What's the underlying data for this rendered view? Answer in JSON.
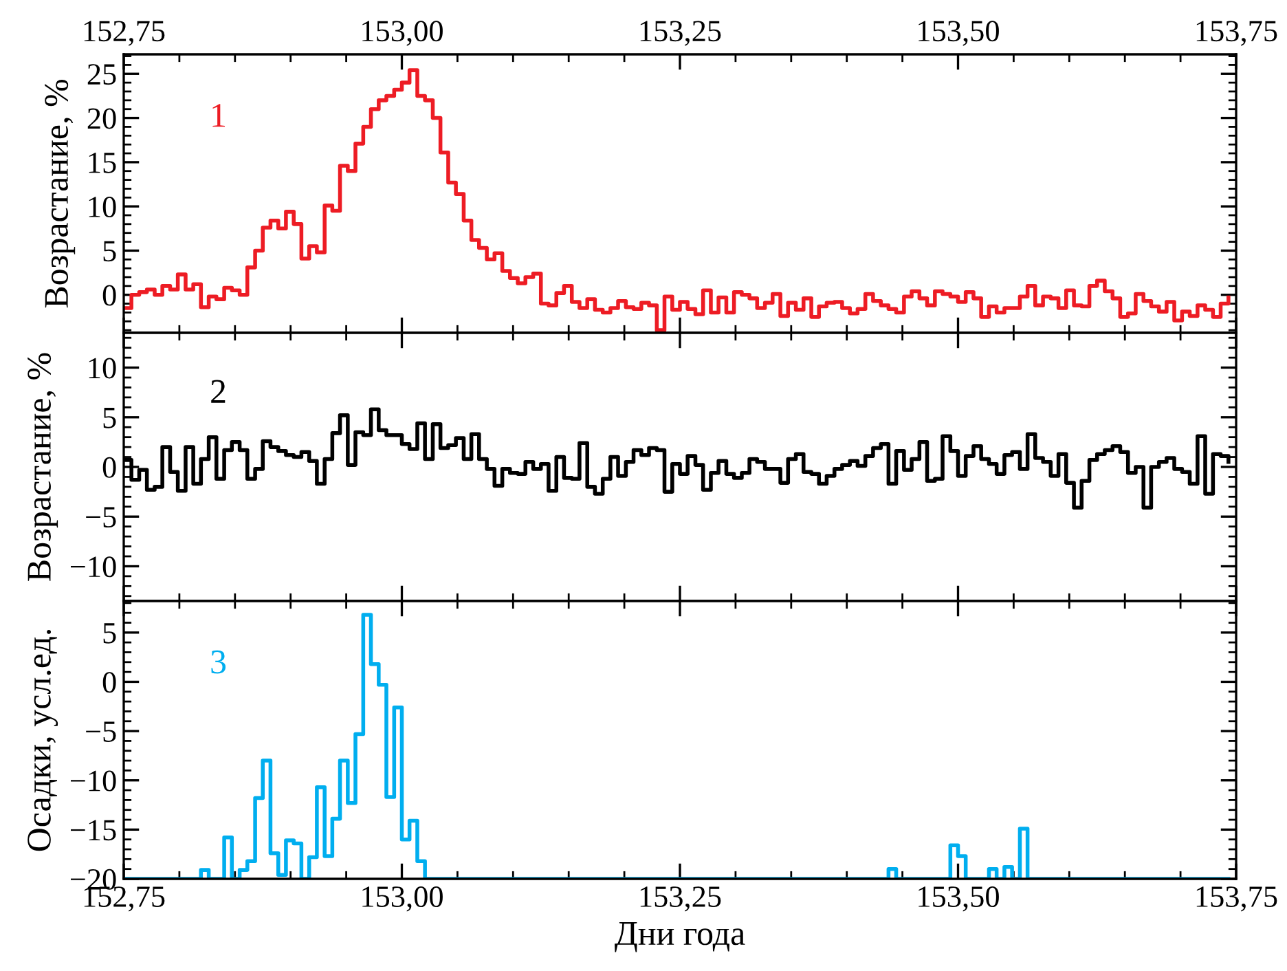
{
  "chart_data": [
    {
      "type": "step",
      "ylabel": "Возрастание, %",
      "tick_labels": "y",
      "xlim": [
        152.75,
        153.75
      ],
      "xticks": [
        {
          "value": 152.75,
          "label": null
        },
        {
          "value": 153.0,
          "label": null
        },
        {
          "value": 153.25,
          "label": null
        },
        {
          "value": 153.5,
          "label": null
        },
        {
          "value": 153.75,
          "label": null
        }
      ],
      "x2lim": [
        152.75,
        153.75
      ],
      "x2ticks": [
        {
          "value": 152.75,
          "label": "152,75"
        },
        {
          "value": 153.0,
          "label": "153,00"
        },
        {
          "value": 153.25,
          "label": "153,25"
        },
        {
          "value": 153.5,
          "label": "153,50"
        },
        {
          "value": 153.75,
          "label": "153,75"
        }
      ],
      "ylim": [
        -4.3,
        27.2
      ],
      "yticks": [
        0,
        5,
        10,
        15,
        20,
        25
      ],
      "x": [
        152.75,
        152.7569,
        152.7639,
        152.7708,
        152.7778,
        152.7847,
        152.7917,
        152.7986,
        152.8056,
        152.8125,
        152.8194,
        152.8264,
        152.8333,
        152.8403,
        152.8472,
        152.8542,
        152.8611,
        152.8681,
        152.875,
        152.8819,
        152.8889,
        152.8958,
        152.9028,
        152.9097,
        152.9167,
        152.9236,
        152.9306,
        152.9375,
        152.9444,
        152.9514,
        152.9583,
        152.9653,
        152.9722,
        152.9792,
        152.9861,
        152.9931,
        153.0,
        153.0069,
        153.0139,
        153.0208,
        153.0278,
        153.0347,
        153.0417,
        153.0486,
        153.0556,
        153.0625,
        153.0694,
        153.0764,
        153.0833,
        153.0903,
        153.0972,
        153.1042,
        153.1111,
        153.1181,
        153.125,
        153.1319,
        153.1389,
        153.1458,
        153.1528,
        153.1597,
        153.1667,
        153.1736,
        153.1806,
        153.1875,
        153.1944,
        153.2014,
        153.2083,
        153.2153,
        153.2222,
        153.2292,
        153.2361,
        153.2431,
        153.25,
        153.2569,
        153.2639,
        153.2708,
        153.2778,
        153.2847,
        153.2917,
        153.2986,
        153.3056,
        153.3125,
        153.3194,
        153.3264,
        153.3333,
        153.3403,
        153.3472,
        153.3542,
        153.3611,
        153.3681,
        153.375,
        153.3819,
        153.3889,
        153.3958,
        153.4028,
        153.4097,
        153.4167,
        153.4236,
        153.4306,
        153.4375,
        153.4444,
        153.4514,
        153.4583,
        153.4653,
        153.4722,
        153.4792,
        153.4861,
        153.4931,
        153.5,
        153.5069,
        153.5139,
        153.5208,
        153.5278,
        153.5347,
        153.5417,
        153.5486,
        153.5556,
        153.5625,
        153.5694,
        153.5764,
        153.5833,
        153.5903,
        153.5972,
        153.6042,
        153.6111,
        153.6181,
        153.625,
        153.6319,
        153.6389,
        153.6458,
        153.6528,
        153.6597,
        153.6667,
        153.6736,
        153.6806,
        153.6875,
        153.6944,
        153.7014,
        153.7083,
        153.7153,
        153.7222,
        153.7292,
        153.7361,
        153.7431
      ],
      "series": [
        {
          "name": "1",
          "color": "#ed1c24",
          "values": [
            -1.5,
            0,
            0.3,
            0.6,
            0,
            1,
            0.6,
            2.3,
            0.6,
            1.2,
            -1.4,
            -0.2,
            -0.5,
            0.8,
            0.5,
            0,
            3.1,
            5,
            7.6,
            8.4,
            7.5,
            9.4,
            8,
            4.1,
            5.5,
            4.8,
            10.1,
            9.5,
            14.6,
            14,
            17.1,
            19,
            21,
            22,
            22.5,
            23.2,
            24,
            25.4,
            22.5,
            22,
            20,
            16.1,
            12.7,
            11.4,
            8.4,
            6.2,
            5.3,
            4,
            4.7,
            2.7,
            1.9,
            1.3,
            2,
            2.4,
            -1,
            -1.2,
            0.2,
            1,
            -0.8,
            -1.5,
            -0.5,
            -1.7,
            -2,
            -1.5,
            -0.7,
            -1.4,
            -1.6,
            -0.9,
            -1.2,
            -4,
            -0.2,
            -1.7,
            -0.8,
            -1.6,
            -2.2,
            0.5,
            -2,
            -0.3,
            -2,
            0.3,
            0,
            -0.4,
            -1.5,
            -0.9,
            0.1,
            -2.4,
            -0.9,
            -1.7,
            -0.4,
            -2.5,
            -1.3,
            -0.9,
            -0.8,
            -1.5,
            -2.1,
            -1.6,
            0.1,
            -0.7,
            -1.2,
            -1.6,
            -2,
            -0.2,
            0.4,
            -0.4,
            -1.2,
            0.4,
            0.1,
            -0.2,
            -0.8,
            0.3,
            -0.4,
            -2.5,
            -1.3,
            -2,
            -1.5,
            -1.5,
            -0.2,
            1,
            -1.2,
            -0.2,
            -0.4,
            -1.5,
            0.5,
            -1.2,
            -1.3,
            1,
            1.6,
            0.4,
            -0.4,
            -2.5,
            -2.1,
            0.1,
            -0.7,
            -1.3,
            -1.9,
            -0.8,
            -2.9,
            -1.9,
            -2.4,
            -1.2,
            -1.7,
            -2.5,
            -1,
            -0.3
          ]
        }
      ]
    },
    {
      "type": "step",
      "ylabel": "Возрастание, %",
      "tick_labels": "y",
      "xlim": [
        152.75,
        153.75
      ],
      "xticks": [
        {
          "value": 152.75,
          "label": null
        },
        {
          "value": 153.0,
          "label": null
        },
        {
          "value": 153.25,
          "label": null
        },
        {
          "value": 153.5,
          "label": null
        },
        {
          "value": 153.75,
          "label": null
        }
      ],
      "ylim": [
        -13.5,
        13.5
      ],
      "yticks": [
        {
          "value": -10,
          "label": "−10"
        },
        {
          "value": -5,
          "label": "−5"
        },
        0,
        5,
        10
      ],
      "x": [
        152.75,
        152.7569,
        152.7639,
        152.7708,
        152.7778,
        152.7847,
        152.7917,
        152.7986,
        152.8056,
        152.8125,
        152.8194,
        152.8264,
        152.8333,
        152.8403,
        152.8472,
        152.8542,
        152.8611,
        152.8681,
        152.875,
        152.8819,
        152.8889,
        152.8958,
        152.9028,
        152.9097,
        152.9167,
        152.9236,
        152.9306,
        152.9375,
        152.9444,
        152.9514,
        152.9583,
        152.9653,
        152.9722,
        152.9792,
        152.9861,
        152.9931,
        153.0,
        153.0069,
        153.0139,
        153.0208,
        153.0278,
        153.0347,
        153.0417,
        153.0486,
        153.0556,
        153.0625,
        153.0694,
        153.0764,
        153.0833,
        153.0903,
        153.0972,
        153.1042,
        153.1111,
        153.1181,
        153.125,
        153.1319,
        153.1389,
        153.1458,
        153.1528,
        153.1597,
        153.1667,
        153.1736,
        153.1806,
        153.1875,
        153.1944,
        153.2014,
        153.2083,
        153.2153,
        153.2222,
        153.2292,
        153.2361,
        153.2431,
        153.25,
        153.2569,
        153.2639,
        153.2708,
        153.2778,
        153.2847,
        153.2917,
        153.2986,
        153.3056,
        153.3125,
        153.3194,
        153.3264,
        153.3333,
        153.3403,
        153.3472,
        153.3542,
        153.3611,
        153.3681,
        153.375,
        153.3819,
        153.3889,
        153.3958,
        153.4028,
        153.4097,
        153.4167,
        153.4236,
        153.4306,
        153.4375,
        153.4444,
        153.4514,
        153.4583,
        153.4653,
        153.4722,
        153.4792,
        153.4861,
        153.4931,
        153.5,
        153.5069,
        153.5139,
        153.5208,
        153.5278,
        153.5347,
        153.5417,
        153.5486,
        153.5556,
        153.5625,
        153.5694,
        153.5764,
        153.5833,
        153.5903,
        153.5972,
        153.6042,
        153.6111,
        153.6181,
        153.625,
        153.6319,
        153.6389,
        153.6458,
        153.6528,
        153.6597,
        153.6667,
        153.6736,
        153.6806,
        153.6875,
        153.6944,
        153.7014,
        153.7083,
        153.7153,
        153.7222,
        153.7292,
        153.7361,
        153.7431
      ],
      "series": [
        {
          "name": "2",
          "color": "#000000",
          "values": [
            0.7,
            -1.3,
            -0.3,
            -2.3,
            -2,
            2,
            -0.5,
            -2.4,
            2,
            -1.7,
            0.8,
            3,
            -1.2,
            1.7,
            2.5,
            1.7,
            -1.2,
            -0.2,
            2.6,
            2,
            1.6,
            1.2,
            1,
            1.5,
            0.6,
            -1.7,
            0.8,
            3.4,
            5.2,
            0.2,
            3.5,
            3.2,
            5.8,
            3.7,
            3.2,
            3.2,
            2.3,
            1.8,
            4.4,
            0.8,
            4.3,
            1.9,
            2.2,
            2.9,
            0.8,
            3.3,
            0.8,
            -0.2,
            -1.9,
            -0.2,
            -0.6,
            -0.7,
            0.5,
            -0.2,
            0.3,
            -2.4,
            1,
            -1.1,
            -1.2,
            2.4,
            -2,
            -2.7,
            -1.2,
            1,
            -0.9,
            0.5,
            1.7,
            1.2,
            1.9,
            1.7,
            -2.5,
            0.3,
            -0.7,
            1.1,
            0.2,
            -2.3,
            -0.6,
            0.6,
            -0.7,
            -1.1,
            -0.6,
            0.8,
            0.5,
            -0.2,
            -0.2,
            -1.6,
            0.8,
            1.3,
            -0.5,
            -0.7,
            -1.7,
            -0.9,
            -0.2,
            0.2,
            0.6,
            0.1,
            1.1,
            1.9,
            2.3,
            -1.7,
            1.6,
            -0.3,
            0.8,
            2.5,
            -1.4,
            -1.2,
            3.1,
            1.6,
            -0.9,
            1.1,
            2.1,
            0.8,
            0.3,
            -0.7,
            1.2,
            1.5,
            -0.2,
            3.3,
            0.9,
            0.5,
            -0.9,
            1.3,
            -1.6,
            -4.1,
            -1.4,
            0.7,
            1.3,
            1.7,
            2.1,
            1.5,
            -0.6,
            0,
            -4.1,
            0,
            0.5,
            0.9,
            -0.2,
            -0.5,
            -1.7,
            3.1,
            -2.7,
            1.3,
            1.1,
            0.5
          ]
        }
      ]
    },
    {
      "type": "step",
      "ylabel": "Осадки, усл.ед.",
      "xlabel": "Дни года",
      "xlim": [
        152.75,
        153.75
      ],
      "xticks": [
        {
          "value": 152.75,
          "label": "152,75"
        },
        {
          "value": 153.0,
          "label": "153,00"
        },
        {
          "value": 153.25,
          "label": "153,25"
        },
        {
          "value": 153.5,
          "label": "153,50"
        },
        {
          "value": 153.75,
          "label": "153,75"
        }
      ],
      "ylim": [
        -20,
        8.2
      ],
      "yticks": [
        {
          "value": -20,
          "label": "−20"
        },
        {
          "value": -15,
          "label": "−15"
        },
        {
          "value": -10,
          "label": "−10"
        },
        {
          "value": -5,
          "label": "−5"
        },
        0,
        5
      ],
      "x": [
        152.75,
        152.7569,
        152.7639,
        152.7708,
        152.7778,
        152.7847,
        152.7917,
        152.7986,
        152.8056,
        152.8125,
        152.8194,
        152.8264,
        152.8333,
        152.8403,
        152.8472,
        152.8542,
        152.8611,
        152.8681,
        152.875,
        152.8819,
        152.8889,
        152.8958,
        152.9028,
        152.9097,
        152.9167,
        152.9236,
        152.9306,
        152.9375,
        152.9444,
        152.9514,
        152.9583,
        152.9653,
        152.9722,
        152.9792,
        152.9861,
        152.9931,
        153.0,
        153.0069,
        153.0139,
        153.0208,
        153.0278,
        153.0347,
        153.0417,
        153.0486,
        153.0556,
        153.0625,
        153.0694,
        153.0764,
        153.0833,
        153.0903,
        153.0972,
        153.1042,
        153.1111,
        153.1181,
        153.125,
        153.1319,
        153.1389,
        153.1458,
        153.1528,
        153.1597,
        153.1667,
        153.1736,
        153.1806,
        153.1875,
        153.1944,
        153.2014,
        153.2083,
        153.2153,
        153.2222,
        153.2292,
        153.2361,
        153.2431,
        153.25,
        153.2569,
        153.2639,
        153.2708,
        153.2778,
        153.2847,
        153.2917,
        153.2986,
        153.3056,
        153.3125,
        153.3194,
        153.3264,
        153.3333,
        153.3403,
        153.3472,
        153.3542,
        153.3611,
        153.3681,
        153.375,
        153.3819,
        153.3889,
        153.3958,
        153.4028,
        153.4097,
        153.4167,
        153.4236,
        153.4306,
        153.4375,
        153.4444,
        153.4514,
        153.4583,
        153.4653,
        153.4722,
        153.4792,
        153.4861,
        153.4931,
        153.5,
        153.5069,
        153.5139,
        153.5208,
        153.5278,
        153.5347,
        153.5417,
        153.5486,
        153.5556,
        153.5625,
        153.5694,
        153.5764,
        153.5833,
        153.5903,
        153.5972,
        153.6042,
        153.6111,
        153.6181,
        153.625,
        153.6319,
        153.6389,
        153.6458,
        153.6528,
        153.6597,
        153.6667,
        153.6736,
        153.6806,
        153.6875,
        153.6944,
        153.7014,
        153.7083,
        153.7153,
        153.7222,
        153.7292,
        153.7361,
        153.7431
      ],
      "series": [
        {
          "name": "3",
          "color": "#00aeef",
          "values": [
            -20,
            -20,
            -20,
            -20,
            -20,
            -20,
            -20,
            -20,
            -20,
            -20,
            -19.1,
            -20,
            -20,
            -15.8,
            -20,
            -19.1,
            -18.2,
            -11.8,
            -8,
            -17.4,
            -19.6,
            -16.1,
            -16.4,
            -20,
            -17.8,
            -10.7,
            -17.7,
            -13.9,
            -8,
            -12.3,
            -5.3,
            6.8,
            1.8,
            -0.3,
            -11.7,
            -2.6,
            -16,
            -14.1,
            -18.2,
            -20,
            -20,
            -20,
            -20,
            -20,
            -20,
            -20,
            -20,
            -20,
            -20,
            -20,
            -20,
            -20,
            -20,
            -20,
            -20,
            -20,
            -20,
            -20,
            -20,
            -20,
            -20,
            -20,
            -20,
            -20,
            -20,
            -20,
            -20,
            -20,
            -20,
            -20,
            -20,
            -20,
            -20,
            -20,
            -20,
            -20,
            -20,
            -20,
            -20,
            -20,
            -20,
            -20,
            -20,
            -20,
            -20,
            -20,
            -20,
            -20,
            -20,
            -20,
            -20,
            -20,
            -20,
            -20,
            -20,
            -20,
            -20,
            -20,
            -20,
            -19,
            -20,
            -20,
            -20,
            -20,
            -20,
            -20,
            -20,
            -16.6,
            -17.7,
            -20,
            -20,
            -20,
            -19,
            -20,
            -18.8,
            -20,
            -14.9,
            -20,
            -20,
            -20,
            -20,
            -20,
            -20,
            -20,
            -20,
            -20,
            -20,
            -20,
            -20,
            -20,
            -20,
            -20,
            -20,
            -20,
            -20,
            -20,
            -20,
            -20,
            -20,
            -20,
            -20,
            -20,
            -20,
            -20
          ]
        }
      ]
    }
  ]
}
